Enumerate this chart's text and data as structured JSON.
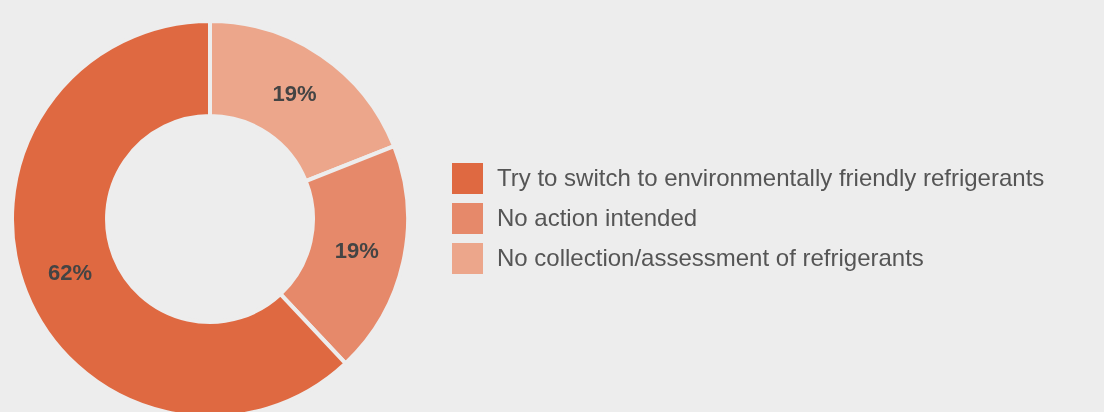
{
  "chart_data": {
    "type": "donut",
    "categories": [
      "No collection/assessment of refrigerants",
      "No action intended",
      "Try to switch to environmentally friendly refrigerants"
    ],
    "values": [
      19,
      19,
      62
    ],
    "value_labels": [
      "19%",
      "19%",
      "62%"
    ],
    "colors": [
      "#eca68b",
      "#e6896a",
      "#df6941"
    ],
    "legend": "right"
  }
}
